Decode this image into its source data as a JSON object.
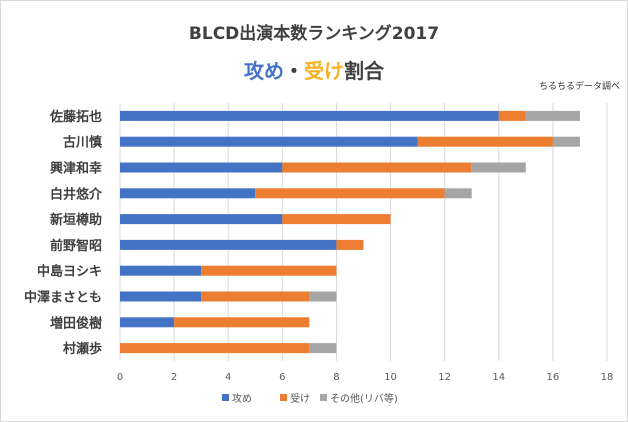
{
  "chart_data": {
    "type": "bar",
    "orientation": "horizontal",
    "stacked": true,
    "title": "BLCD出演本数ランキング2017",
    "subtitle": {
      "part1": "攻め",
      "sep": "・",
      "part2": "受け",
      "part3": "割合"
    },
    "note": "ちるちるデータ調べ",
    "categories": [
      "佐藤拓也",
      "古川慎",
      "興津和幸",
      "白井悠介",
      "新垣樽助",
      "前野智昭",
      "中島ヨシキ",
      "中澤まさとも",
      "増田俊樹",
      "村瀬歩"
    ],
    "series": [
      {
        "name": "攻め",
        "color": "#4472c4",
        "values": [
          14,
          11,
          6,
          5,
          6,
          8,
          3,
          3,
          2,
          0
        ]
      },
      {
        "name": "受け",
        "color": "#ed7d31",
        "values": [
          1,
          5,
          7,
          7,
          4,
          1,
          5,
          4,
          5,
          7
        ]
      },
      {
        "name": "その他(リバ等)",
        "color": "#a5a5a5",
        "values": [
          2,
          1,
          2,
          1,
          0,
          0,
          0,
          1,
          0,
          1
        ]
      }
    ],
    "xlim": [
      0,
      18
    ],
    "xticks": [
      "0",
      "2",
      "4",
      "6",
      "8",
      "10",
      "12",
      "14",
      "16",
      "18"
    ],
    "grid": true,
    "legend": "bottom",
    "subtitle_colors": {
      "part1": "#4472c4",
      "part2": "#f5b324",
      "part3": "#404040"
    }
  }
}
